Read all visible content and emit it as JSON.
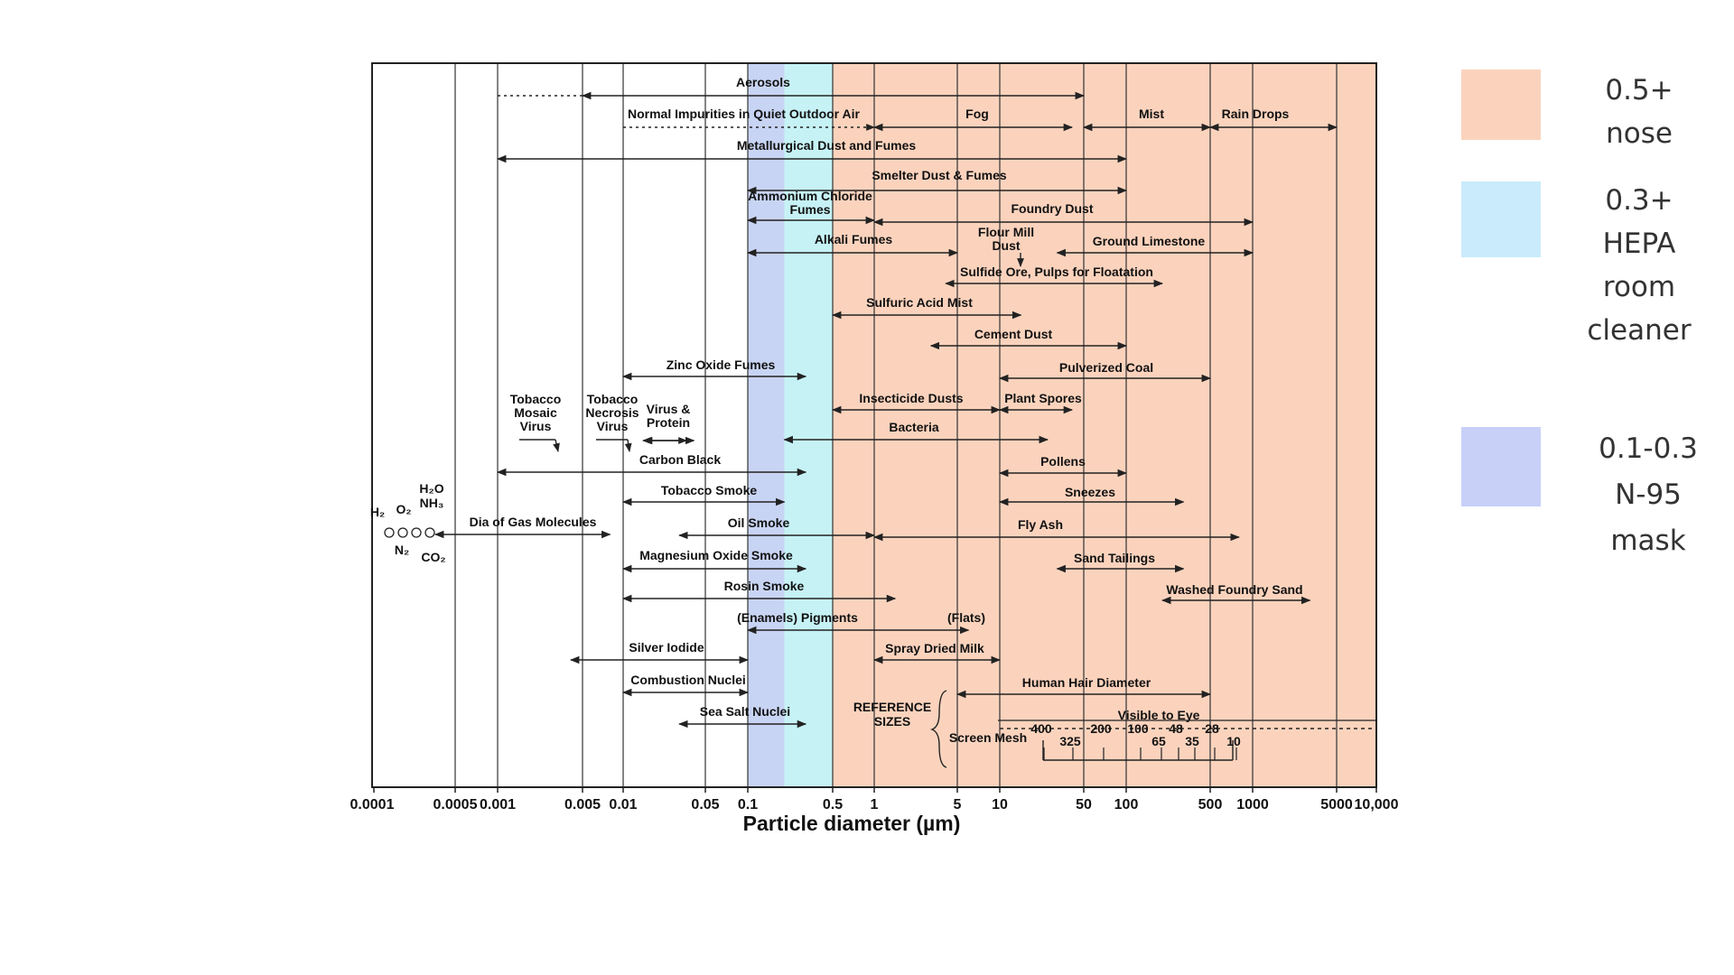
{
  "chart": {
    "xlabel": "Particle diameter (µm)",
    "tick_labels": [
      "0.0001",
      "0.0005",
      "0.001",
      "0.005",
      "0.01",
      "0.05",
      "0.1",
      "0.5",
      "1",
      "5",
      "10",
      "50",
      "100",
      "500",
      "1000",
      "5000",
      "10,000"
    ],
    "bands": [
      {
        "from": 0.1,
        "to": 0.2,
        "color": "#c8d4f3"
      },
      {
        "from": 0.2,
        "to": 0.5,
        "color": "#c6f2f5"
      },
      {
        "from": 0.5,
        "to": 10000,
        "color": "#fbd3bd"
      }
    ],
    "rows": [
      {
        "label": "Aerosols",
        "from": 0.005,
        "to": 50,
        "dotted_from": 0.001
      },
      {
        "label": "Normal Impurities in Quiet Outdoor Air",
        "from": 0.01,
        "to": 1,
        "dotted": true
      },
      {
        "label": "Fog",
        "from": 1,
        "to": 40
      },
      {
        "label": "Mist",
        "from": 50,
        "to": 500
      },
      {
        "label": "Rain Drops",
        "from": 500,
        "to": 5000
      },
      {
        "label": "Metallurgical Dust and Fumes",
        "from": 0.001,
        "to": 100
      },
      {
        "label": "Smelter Dust & Fumes",
        "from": 0.1,
        "to": 100
      },
      {
        "label": "Ammonium Chloride Fumes",
        "from": 0.1,
        "to": 1
      },
      {
        "label": "Foundry Dust",
        "from": 1,
        "to": 1000
      },
      {
        "label": "Alkali Fumes",
        "from": 0.1,
        "to": 5
      },
      {
        "label": "Flour Mill Dust",
        "from": 25,
        "to": 25
      },
      {
        "label": "Ground Limestone",
        "from": 30,
        "to": 1000
      },
      {
        "label": "Sulfide Ore, Pulps for Floatation",
        "from": 4,
        "to": 200
      },
      {
        "label": "Sulfuric Acid Mist",
        "from": 0.5,
        "to": 15
      },
      {
        "label": "Cement Dust",
        "from": 3,
        "to": 100
      },
      {
        "label": "Zinc Oxide Fumes",
        "from": 0.01,
        "to": 0.3
      },
      {
        "label": "Pulverized Coal",
        "from": 10,
        "to": 500
      },
      {
        "label": "Insecticide Dusts",
        "from": 0.5,
        "to": 10
      },
      {
        "label": "Plant Spores",
        "from": 10,
        "to": 40
      },
      {
        "label": "Bacteria",
        "from": 0.2,
        "to": 25
      },
      {
        "label": "Carbon Black",
        "from": 0.001,
        "to": 0.3
      },
      {
        "label": "Pollens",
        "from": 10,
        "to": 100
      },
      {
        "label": "Tobacco Smoke",
        "from": 0.01,
        "to": 0.2
      },
      {
        "label": "Sneezes",
        "from": 10,
        "to": 300
      },
      {
        "label": "Dia of Gas Molecules",
        "from": 0.0001,
        "to": 0.008
      },
      {
        "label": "Oil Smoke",
        "from": 0.03,
        "to": 1
      },
      {
        "label": "Fly Ash",
        "from": 1,
        "to": 800
      },
      {
        "label": "Magnesium Oxide Smoke",
        "from": 0.01,
        "to": 0.3
      },
      {
        "label": "Sand Tailings",
        "from": 30,
        "to": 300
      },
      {
        "label": "Rosin Smoke",
        "from": 0.01,
        "to": 1.5
      },
      {
        "label": "Washed Foundry Sand",
        "from": 200,
        "to": 3000
      },
      {
        "label": "(Enamels)  Pigments",
        "from": 0.1,
        "to": 6
      },
      {
        "label": "(Flats)",
        "from": 5,
        "to": 5
      },
      {
        "label": "Silver Iodide",
        "from": 0.004,
        "to": 0.1
      },
      {
        "label": "Spray Dried Milk",
        "from": 1,
        "to": 10
      },
      {
        "label": "Combustion Nuclei",
        "from": 0.01,
        "to": 0.1
      },
      {
        "label": "Human Hair Diameter",
        "from": 5,
        "to": 500
      },
      {
        "label": "Sea Salt Nuclei",
        "from": 0.03,
        "to": 0.3
      },
      {
        "label": "Visible to Eye",
        "from": 10,
        "to": 10000
      },
      {
        "label": "Tobacco Mosaic Virus",
        "from": 0.03,
        "to": 0.03
      },
      {
        "label": "Tobacco Necrosis Virus",
        "from": 0.012,
        "to": 0.012
      },
      {
        "label": "Virus & Protein",
        "from": 0.015,
        "to": 0.04
      }
    ],
    "virus_labels": {
      "tobacco_mosaic": [
        "Tobacco",
        "Mosaic",
        "Virus"
      ],
      "tobacco_necrosis": [
        "Tobacco",
        "Necrosis",
        "Virus"
      ],
      "virus_protein": [
        "Virus &",
        "Protein"
      ],
      "ammonium": [
        "Ammonium Chloride",
        "Fumes"
      ],
      "flour_mill": [
        "Flour Mill",
        "Dust"
      ]
    },
    "molecules": {
      "h2": "H₂",
      "o2": "O₂",
      "n2": "N₂",
      "co2": "CO₂",
      "h2o": "H₂O",
      "nh3": "NH₃"
    },
    "reference": {
      "title": [
        "REFERENCE",
        "SIZES"
      ],
      "screen_mesh": "Screen Mesh",
      "mesh_sizes": [
        "400",
        "325",
        "200",
        "100",
        "65",
        "48",
        "35",
        "28",
        "10"
      ]
    }
  },
  "legend": [
    {
      "text": "0.5+\nnose",
      "color": "#fbd3bd"
    },
    {
      "text": "0.3+\nHEPA\nroom\ncleaner",
      "color": "#c9ebfb"
    },
    {
      "text": "0.1-0.3\nN-95\nmask",
      "color": "#c8d0f8"
    }
  ]
}
